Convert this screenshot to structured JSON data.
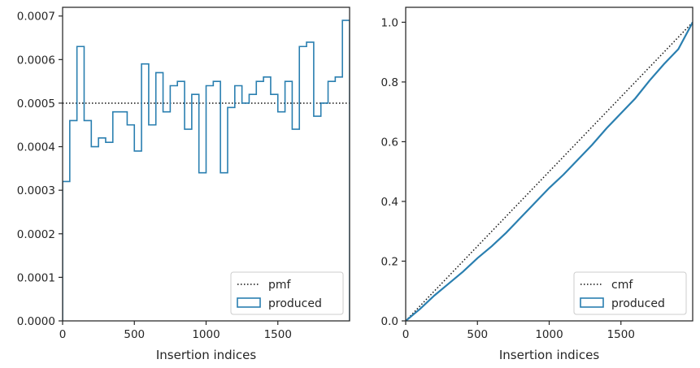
{
  "colors": {
    "produced": "#2a7fb0",
    "reference": "#111111",
    "frame": "#262626",
    "legend_border": "#cccccc"
  },
  "chart_data": [
    {
      "type": "histogram-step",
      "xlabel": "Insertion indices",
      "ylabel": "",
      "xlim": [
        0,
        2000
      ],
      "ylim": [
        0,
        0.00072
      ],
      "grid": false,
      "legend_position": "lower-right",
      "xticks": [
        0,
        500,
        1000,
        1500
      ],
      "xtick_labels": [
        "0",
        "500",
        "1000",
        "1500"
      ],
      "yticks": [
        0,
        0.0001,
        0.0002,
        0.0003,
        0.0004,
        0.0005,
        0.0006,
        0.0007
      ],
      "ytick_labels": [
        "0.0000",
        "0.0001",
        "0.0002",
        "0.0003",
        "0.0004",
        "0.0005",
        "0.0006",
        "0.0007"
      ],
      "bin_edges": [
        0,
        50,
        100,
        150,
        200,
        250,
        300,
        350,
        400,
        450,
        500,
        550,
        600,
        650,
        700,
        750,
        800,
        850,
        900,
        950,
        1000,
        1050,
        1100,
        1150,
        1200,
        1250,
        1300,
        1350,
        1400,
        1450,
        1500,
        1550,
        1600,
        1650,
        1700,
        1750,
        1800,
        1850,
        1900,
        1950,
        2000
      ],
      "series": [
        {
          "name": "pmf",
          "style": "dotted",
          "x": [
            0,
            2000
          ],
          "y": [
            0.0005,
            0.0005
          ]
        },
        {
          "name": "produced",
          "style": "step",
          "values": [
            0.00032,
            0.00046,
            0.00063,
            0.00046,
            0.0004,
            0.00042,
            0.00041,
            0.00048,
            0.00048,
            0.00045,
            0.00039,
            0.00059,
            0.00045,
            0.00057,
            0.00048,
            0.00054,
            0.00055,
            0.00044,
            0.00052,
            0.00034,
            0.00054,
            0.00055,
            0.00034,
            0.00049,
            0.00054,
            0.0005,
            0.00052,
            0.00055,
            0.00056,
            0.00052,
            0.00048,
            0.00055,
            0.00044,
            0.00063,
            0.00064,
            0.00047,
            0.0005,
            0.00055,
            0.00056,
            0.00069
          ]
        }
      ]
    },
    {
      "type": "line",
      "xlabel": "Insertion indices",
      "ylabel": "",
      "xlim": [
        0,
        2000
      ],
      "ylim": [
        0,
        1.05
      ],
      "grid": false,
      "legend_position": "lower-right",
      "xticks": [
        0,
        500,
        1000,
        1500
      ],
      "xtick_labels": [
        "0",
        "500",
        "1000",
        "1500"
      ],
      "yticks": [
        0,
        0.2,
        0.4,
        0.6,
        0.8,
        1.0
      ],
      "ytick_labels": [
        "0.0",
        "0.2",
        "0.4",
        "0.6",
        "0.8",
        "1.0"
      ],
      "series": [
        {
          "name": "cmf",
          "style": "dotted",
          "x": [
            0,
            2000
          ],
          "y": [
            0,
            1.0
          ]
        },
        {
          "name": "produced",
          "style": "step",
          "x": [
            0,
            100,
            200,
            300,
            400,
            500,
            600,
            700,
            800,
            900,
            1000,
            1100,
            1200,
            1300,
            1400,
            1500,
            1600,
            1700,
            1800,
            1900,
            2000
          ],
          "y": [
            0,
            0.04,
            0.085,
            0.125,
            0.165,
            0.21,
            0.25,
            0.295,
            0.345,
            0.395,
            0.445,
            0.49,
            0.54,
            0.59,
            0.645,
            0.695,
            0.745,
            0.805,
            0.86,
            0.91,
            1.0
          ]
        }
      ]
    }
  ]
}
